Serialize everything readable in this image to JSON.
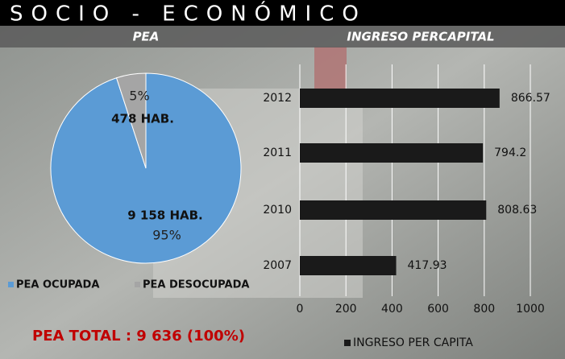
{
  "header": {
    "title": "SOCIO - ECONÓMICO"
  },
  "footer": {
    "text": "PEA TOTAL : 9 636 (100%)"
  },
  "chart_data": [
    {
      "type": "pie",
      "title": "PEA",
      "categories": [
        "PEA OCUPADA",
        "PEA DESOCUPADA"
      ],
      "values": [
        95,
        5
      ],
      "value_labels": [
        "95%",
        "5%"
      ],
      "hab_labels": [
        "9 158 HAB.",
        "478 HAB."
      ],
      "colors": [
        "#5b9bd5",
        "#a5a5a5"
      ]
    },
    {
      "type": "hbar",
      "title": "INGRESO PERCAPITAL",
      "categories": [
        "2012",
        "2011",
        "2010",
        "2007"
      ],
      "series": [
        {
          "name": "INGRESO PER CAPITA",
          "color": "#1a1a1a",
          "values": [
            866.57,
            794.2,
            808.63,
            417.93
          ]
        }
      ],
      "xlim": [
        0,
        1000
      ],
      "xticks": [
        0,
        200,
        400,
        600,
        800,
        1000
      ],
      "grid": true
    }
  ]
}
